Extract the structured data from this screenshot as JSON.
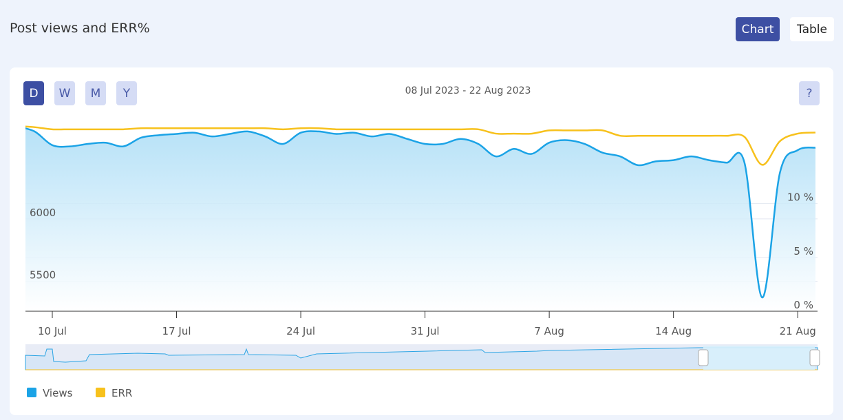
{
  "header": {
    "title": "Post views and ERR%",
    "view_buttons": [
      "Chart",
      "Table"
    ]
  },
  "period_buttons": [
    "D",
    "W",
    "M",
    "Y"
  ],
  "date_range": "08 Jul 2023 - 22 Aug 2023",
  "help": "?",
  "chart_data": {
    "type": "line",
    "categories": [
      null,
      null,
      "10 Jul",
      null,
      null,
      null,
      null,
      null,
      null,
      "17 Jul",
      null,
      null,
      null,
      null,
      null,
      null,
      "24 Jul",
      null,
      null,
      null,
      null,
      null,
      null,
      "31 Jul",
      null,
      null,
      null,
      null,
      null,
      null,
      "7 Aug",
      null,
      null,
      null,
      null,
      null,
      null,
      "14 Aug",
      null,
      null,
      null,
      null,
      null,
      null,
      "21 Aug",
      null
    ],
    "series": [
      {
        "name": "Views",
        "color": "#1ba3e6",
        "values": [
          6740,
          6700,
          6590,
          6580,
          6600,
          6610,
          6580,
          6650,
          6670,
          6680,
          6690,
          6660,
          6680,
          6700,
          6660,
          6600,
          6690,
          6700,
          6680,
          6690,
          6660,
          6680,
          6640,
          6600,
          6600,
          6640,
          6600,
          6500,
          6560,
          6520,
          6610,
          6630,
          6600,
          6530,
          6500,
          6430,
          6460,
          6470,
          6500,
          6470,
          6450,
          6450,
          5370,
          6370,
          6550,
          6570
        ]
      },
      {
        "name": "ERR",
        "color": "#f7c11c",
        "axis": "y2",
        "values": [
          17.2,
          17.1,
          16.9,
          16.9,
          16.9,
          16.9,
          16.9,
          17.0,
          17.0,
          17.0,
          17.0,
          17.0,
          17.0,
          17.0,
          17.0,
          16.9,
          17.0,
          17.0,
          16.9,
          16.9,
          16.9,
          16.9,
          16.9,
          16.9,
          16.9,
          16.9,
          16.9,
          16.5,
          16.5,
          16.5,
          16.8,
          16.8,
          16.8,
          16.8,
          16.3,
          16.3,
          16.3,
          16.3,
          16.3,
          16.3,
          16.3,
          16.2,
          13.6,
          15.8,
          16.5,
          16.6
        ]
      }
    ],
    "ylim": [
      5260,
      6760
    ],
    "yticks": [
      5500,
      6000
    ],
    "y2lim": [
      0,
      17.4
    ],
    "y2ticks": [
      {
        "value": 0,
        "label": "0 %"
      },
      {
        "value": 5,
        "label": "5 %"
      },
      {
        "value": 10,
        "label": "10 %"
      }
    ],
    "grid": true
  }
}
